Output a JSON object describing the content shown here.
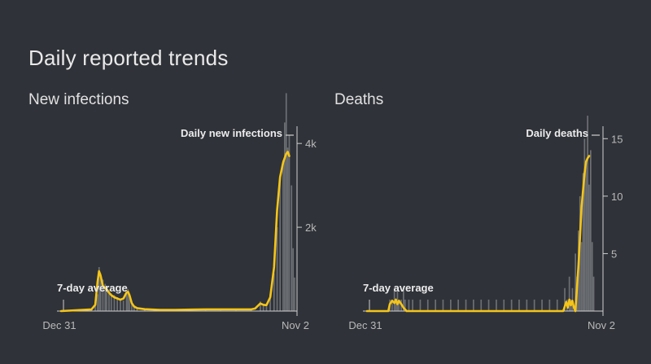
{
  "page": {
    "title": "Daily reported trends"
  },
  "colors": {
    "background": "#2f3238",
    "bars": "#777a7e",
    "average_line": "#f5c518",
    "axis": "#cfcfcf"
  },
  "chart_data": [
    {
      "id": "infections",
      "type": "bar",
      "title": "New infections",
      "x_start_label": "Dec 31",
      "x_end_label": "Nov 2",
      "y_ticks": [
        {
          "value": 2000,
          "label": "2k"
        },
        {
          "value": 4000,
          "label": "4k"
        }
      ],
      "ylim": [
        0,
        4800
      ],
      "series_label": "Daily new infections",
      "avg_label": "7-day average",
      "legend_position": "top-right",
      "grid": false,
      "days": 307,
      "bars": [
        [
          0,
          0
        ],
        [
          40,
          60
        ],
        [
          45,
          200
        ],
        [
          48,
          400
        ],
        [
          50,
          1050
        ],
        [
          52,
          900
        ],
        [
          55,
          750
        ],
        [
          58,
          650
        ],
        [
          60,
          600
        ],
        [
          63,
          500
        ],
        [
          66,
          420
        ],
        [
          70,
          380
        ],
        [
          74,
          330
        ],
        [
          78,
          300
        ],
        [
          82,
          250
        ],
        [
          86,
          450
        ],
        [
          88,
          520
        ],
        [
          90,
          400
        ],
        [
          93,
          200
        ],
        [
          96,
          120
        ],
        [
          100,
          80
        ],
        [
          110,
          50
        ],
        [
          130,
          40
        ],
        [
          150,
          35
        ],
        [
          170,
          40
        ],
        [
          190,
          50
        ],
        [
          210,
          60
        ],
        [
          230,
          50
        ],
        [
          250,
          60
        ],
        [
          262,
          230
        ],
        [
          266,
          160
        ],
        [
          270,
          110
        ],
        [
          275,
          400
        ],
        [
          280,
          900
        ],
        [
          284,
          2000
        ],
        [
          288,
          3200
        ],
        [
          292,
          3600
        ],
        [
          294,
          4500
        ],
        [
          296,
          5200
        ],
        [
          298,
          3900
        ],
        [
          300,
          4200
        ],
        [
          303,
          3000
        ],
        [
          305,
          1500
        ],
        [
          307,
          800
        ]
      ],
      "average": [
        [
          0,
          0
        ],
        [
          40,
          40
        ],
        [
          45,
          150
        ],
        [
          48,
          700
        ],
        [
          50,
          950
        ],
        [
          52,
          850
        ],
        [
          55,
          600
        ],
        [
          58,
          550
        ],
        [
          60,
          520
        ],
        [
          63,
          440
        ],
        [
          66,
          380
        ],
        [
          70,
          330
        ],
        [
          74,
          300
        ],
        [
          78,
          270
        ],
        [
          82,
          300
        ],
        [
          86,
          440
        ],
        [
          88,
          460
        ],
        [
          90,
          380
        ],
        [
          93,
          190
        ],
        [
          96,
          110
        ],
        [
          100,
          70
        ],
        [
          110,
          45
        ],
        [
          130,
          30
        ],
        [
          150,
          30
        ],
        [
          170,
          35
        ],
        [
          190,
          40
        ],
        [
          210,
          40
        ],
        [
          230,
          40
        ],
        [
          250,
          40
        ],
        [
          255,
          60
        ],
        [
          262,
          180
        ],
        [
          266,
          150
        ],
        [
          270,
          140
        ],
        [
          275,
          330
        ],
        [
          280,
          1050
        ],
        [
          284,
          2400
        ],
        [
          288,
          3200
        ],
        [
          292,
          3550
        ],
        [
          294,
          3650
        ],
        [
          296,
          3750
        ],
        [
          298,
          3800
        ],
        [
          300,
          3700
        ]
      ]
    },
    {
      "id": "deaths",
      "type": "bar",
      "title": "Deaths",
      "x_start_label": "Dec 31",
      "x_end_label": "Nov 2",
      "y_ticks": [
        {
          "value": 5,
          "label": "5"
        },
        {
          "value": 10,
          "label": "10"
        },
        {
          "value": 15,
          "label": "15"
        }
      ],
      "ylim": [
        0,
        17.5
      ],
      "series_label": "Daily deaths",
      "avg_label": "7-day average",
      "legend_position": "top-right",
      "grid": false,
      "days": 307,
      "bars": [
        [
          30,
          1
        ],
        [
          33,
          1
        ],
        [
          36,
          2
        ],
        [
          38,
          1
        ],
        [
          40,
          2
        ],
        [
          42,
          1
        ],
        [
          45,
          1
        ],
        [
          48,
          2
        ],
        [
          50,
          1
        ],
        [
          55,
          1
        ],
        [
          60,
          1
        ],
        [
          70,
          1
        ],
        [
          80,
          1
        ],
        [
          90,
          1
        ],
        [
          100,
          1
        ],
        [
          110,
          1
        ],
        [
          120,
          1
        ],
        [
          130,
          1
        ],
        [
          140,
          1
        ],
        [
          150,
          1
        ],
        [
          160,
          1
        ],
        [
          170,
          1
        ],
        [
          180,
          1
        ],
        [
          190,
          1
        ],
        [
          200,
          1
        ],
        [
          210,
          1
        ],
        [
          220,
          1
        ],
        [
          230,
          1
        ],
        [
          240,
          1
        ],
        [
          250,
          1
        ],
        [
          260,
          2
        ],
        [
          263,
          1
        ],
        [
          266,
          3
        ],
        [
          268,
          1
        ],
        [
          270,
          2
        ],
        [
          274,
          5
        ],
        [
          276,
          3
        ],
        [
          278,
          7
        ],
        [
          280,
          10
        ],
        [
          282,
          6
        ],
        [
          284,
          12
        ],
        [
          286,
          15
        ],
        [
          288,
          13
        ],
        [
          290,
          17
        ],
        [
          292,
          11
        ],
        [
          294,
          14
        ],
        [
          296,
          6
        ],
        [
          298,
          3
        ]
      ],
      "average": [
        [
          0,
          0
        ],
        [
          28,
          0
        ],
        [
          30,
          0.6
        ],
        [
          33,
          0.9
        ],
        [
          36,
          0.7
        ],
        [
          38,
          1.0
        ],
        [
          40,
          0.6
        ],
        [
          42,
          0.9
        ],
        [
          45,
          0.6
        ],
        [
          48,
          0.3
        ],
        [
          52,
          0
        ],
        [
          100,
          0
        ],
        [
          150,
          0
        ],
        [
          200,
          0
        ],
        [
          250,
          0
        ],
        [
          258,
          0
        ],
        [
          262,
          0.8
        ],
        [
          264,
          0.3
        ],
        [
          266,
          1.0
        ],
        [
          268,
          0.5
        ],
        [
          270,
          0.9
        ],
        [
          272,
          0.3
        ],
        [
          274,
          0
        ],
        [
          276,
          2
        ],
        [
          278,
          4
        ],
        [
          280,
          6.5
        ],
        [
          282,
          9
        ],
        [
          284,
          10.5
        ],
        [
          286,
          12
        ],
        [
          288,
          13
        ],
        [
          290,
          13.3
        ],
        [
          292,
          13.5
        ]
      ]
    }
  ]
}
